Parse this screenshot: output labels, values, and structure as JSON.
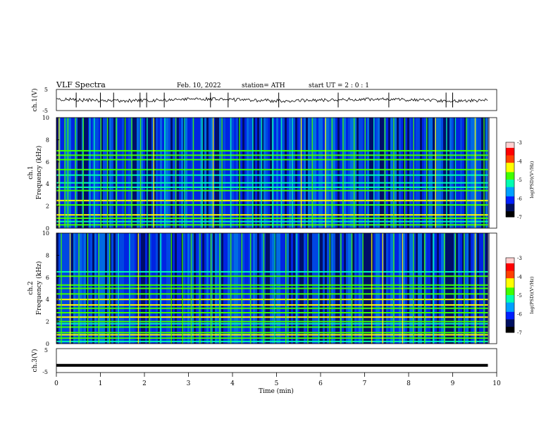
{
  "header": {
    "title": "VLF  Spectra",
    "date": "Feb. 10, 2022",
    "station": "station= ATH",
    "start_ut": "start  UT  =    2 : 0  : 1"
  },
  "chart_data": [
    {
      "type": "line",
      "panel": "ch1-waveform",
      "ylabel": "ch.1(V)",
      "ylim": [
        -5,
        5
      ],
      "yticks": [
        "5",
        "-5"
      ],
      "x_range_min": [
        0,
        9.8
      ],
      "baseline_v": 0,
      "spike_times_min": [
        0.45,
        1.0,
        1.3,
        1.9,
        2.05,
        2.45,
        3.5,
        3.9,
        5.05,
        6.4,
        7.55,
        8.85,
        9.0
      ]
    },
    {
      "type": "heatmap",
      "panel": "ch1-spectrogram",
      "ylabel_line1": "ch.1",
      "ylabel_line2": "Frequency  (kHz)",
      "ylim": [
        0,
        10
      ],
      "yticks": [
        "0",
        "2",
        "4",
        "6",
        "8",
        "10"
      ],
      "x_range_min": [
        0,
        9.8
      ],
      "colorbar": {
        "label": "log(PSD)(V²/Hz)",
        "ticks": [
          "-3",
          "-4",
          "-5",
          "-6",
          "-7"
        ],
        "range": [
          -7,
          -3
        ]
      },
      "strong_lines_khz": [
        0.3,
        0.6,
        0.9,
        1.2,
        2.1,
        2.5,
        3.4,
        3.7,
        4.1,
        4.8,
        5.3,
        6.2,
        6.6,
        7.0
      ],
      "burst_times_min": [
        0.05,
        0.18,
        0.25,
        0.42,
        0.6,
        0.75,
        0.85,
        1.0,
        1.15,
        1.35,
        1.55,
        1.7,
        1.9,
        2.05,
        2.2,
        2.45,
        2.7,
        2.9,
        3.1,
        3.3,
        3.55,
        3.75,
        3.95,
        4.15,
        4.45,
        4.65,
        4.9,
        5.1,
        5.35,
        5.55,
        5.8,
        6.1,
        6.25,
        6.5,
        6.75,
        7.0,
        7.2,
        7.45,
        7.65,
        7.9,
        8.1,
        8.4,
        8.6,
        8.85,
        9.05,
        9.3,
        9.5,
        9.7
      ]
    },
    {
      "type": "heatmap",
      "panel": "ch2-spectrogram",
      "ylabel_line1": "ch.2",
      "ylabel_line2": "Frequency  (kHz)",
      "ylim": [
        0,
        10
      ],
      "yticks": [
        "0",
        "2",
        "4",
        "6",
        "8",
        "10"
      ],
      "x_range_min": [
        0,
        9.8
      ],
      "colorbar": {
        "label": "log(PSD)(V²/Hz)",
        "ticks": [
          "-3",
          "-4",
          "-5",
          "-6",
          "-7"
        ],
        "range": [
          -7,
          -3
        ]
      },
      "strong_lines_khz": [
        0.2,
        0.5,
        0.8,
        1.0,
        1.5,
        1.8,
        2.0,
        2.4,
        2.8,
        3.2,
        3.5,
        4.0,
        4.5,
        5.0,
        5.3,
        6.1,
        6.5
      ],
      "burst_times_min": [
        0.1,
        0.3,
        0.5,
        0.7,
        0.95,
        1.2,
        1.4,
        1.65,
        1.85,
        2.1,
        2.35,
        2.6,
        2.85,
        3.05,
        3.25,
        3.5,
        3.7,
        3.95,
        4.2,
        4.4,
        4.7,
        4.95,
        5.2,
        5.45,
        5.7,
        5.95,
        6.2,
        6.45,
        6.7,
        6.95,
        7.15,
        7.4,
        7.65,
        7.85,
        8.1,
        8.35,
        8.55,
        8.8,
        9.05,
        9.25,
        9.5,
        9.7
      ]
    },
    {
      "type": "line",
      "panel": "ch3-waveform",
      "ylabel": "ch.3(V)",
      "ylim": [
        -5,
        5
      ],
      "yticks": [
        "5",
        "-5"
      ],
      "x_range_min": [
        0,
        9.8
      ],
      "baseline_v": -2
    }
  ],
  "xaxis": {
    "label": "Time  (min)",
    "range": [
      0,
      10
    ],
    "ticks": [
      "0",
      "1",
      "2",
      "3",
      "4",
      "5",
      "6",
      "7",
      "8",
      "9",
      "10"
    ]
  },
  "colors": {
    "axis": "#000000",
    "colormap": [
      "#000000",
      "#001060",
      "#0020ff",
      "#00a0ff",
      "#00ffb0",
      "#40ff00",
      "#ffff00",
      "#ff4000",
      "#ff0000",
      "#ffd0d0"
    ]
  }
}
